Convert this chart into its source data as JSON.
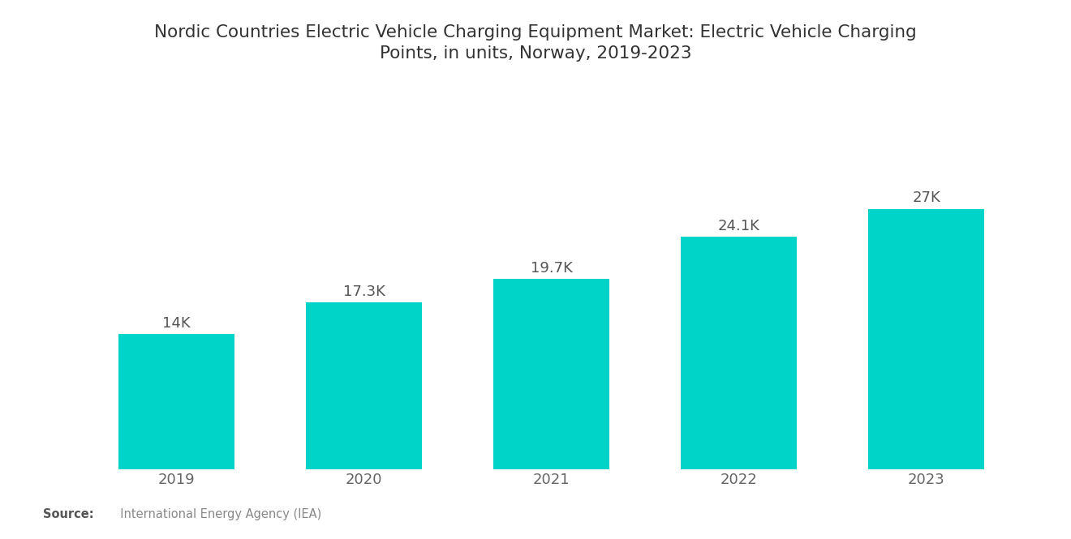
{
  "title_line1": "Nordic Countries Electric Vehicle Charging Equipment Market: Electric Vehicle Charging",
  "title_line2": "Points, in units, Norway, 2019-2023",
  "categories": [
    "2019",
    "2020",
    "2021",
    "2022",
    "2023"
  ],
  "values": [
    14000,
    17300,
    19700,
    24100,
    27000
  ],
  "labels": [
    "14K",
    "17.3K",
    "19.7K",
    "24.1K",
    "27K"
  ],
  "bar_color": "#00D4C8",
  "background_color": "#ffffff",
  "title_fontsize": 15.5,
  "label_fontsize": 13,
  "tick_fontsize": 13,
  "source_bold": "Source:",
  "source_normal": "  International Energy Agency (IEA)",
  "ylim": [
    0,
    33000
  ],
  "bar_width": 0.62
}
